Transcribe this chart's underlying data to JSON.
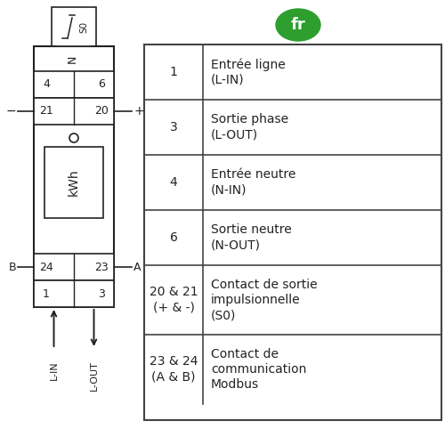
{
  "bg_color": "#ffffff",
  "line_color": "#222222",
  "table_border_color": "#444444",
  "fr_badge_color": "#2e9e2e",
  "fr_text_color": "#ffffff",
  "table_rows": [
    {
      "label": "1",
      "description": "Entrée ligne\n(L-IN)"
    },
    {
      "label": "3",
      "description": "Sortie phase\n(L-OUT)"
    },
    {
      "label": "4",
      "description": "Entrée neutre\n(N-IN)"
    },
    {
      "label": "6",
      "description": "Sortie neutre\n(N-OUT)"
    },
    {
      "label": "20 & 21\n(+ & -)",
      "description": "Contact de sortie\nimpulsionnelle\n(S0)"
    },
    {
      "label": "23 & 24\n(A & B)",
      "description": "Contact de\ncommunication\nModbus"
    }
  ]
}
